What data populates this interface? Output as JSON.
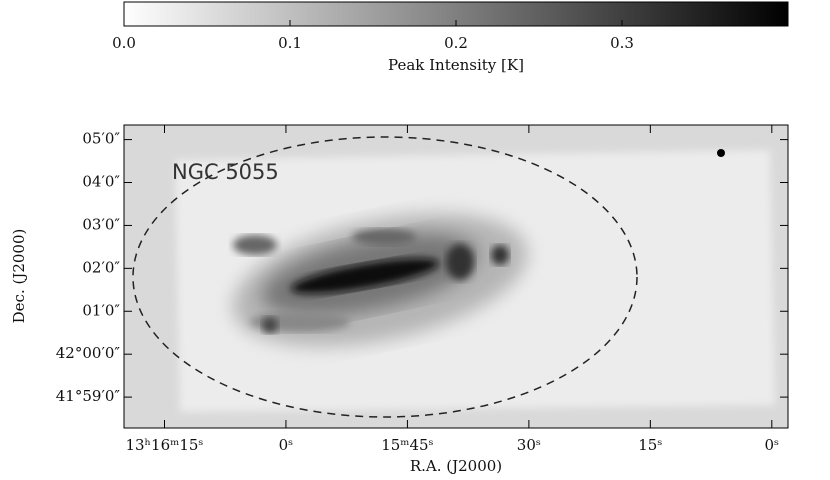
{
  "chart_data": {
    "type": "image",
    "colorbar": {
      "label": "Peak Intensity [K]",
      "lim": [
        0,
        0.4
      ],
      "ticks": [
        {
          "value": 0,
          "label": "0.0"
        },
        0.1,
        0.2,
        0.3
      ]
    },
    "annotation": "NGC 5055",
    "xlabel": "R.A. (J2000)",
    "ylabel": "Dec. (J2000)",
    "xlim": [
      80,
      -2
    ],
    "xticks": [
      {
        "value": 75,
        "label": "13ʰ16ᵐ15ˢ"
      },
      {
        "value": 60,
        "label": "0ˢ"
      },
      {
        "value": 45,
        "label": "15ᵐ45ˢ"
      },
      {
        "value": 30,
        "label": "30ˢ"
      },
      {
        "value": 15,
        "label": "15ˢ"
      },
      {
        "value": 0,
        "label": "0ˢ"
      }
    ],
    "ylim": [
      -1.72,
      5.34
    ],
    "yticks": [
      {
        "value": 5,
        "label": "05′0″"
      },
      {
        "value": 4,
        "label": "04′0″"
      },
      {
        "value": 3,
        "label": "03′0″"
      },
      {
        "value": 2,
        "label": "02′0″"
      },
      {
        "value": 1,
        "label": "01′0″"
      },
      {
        "value": 0,
        "label": "42°00′0″"
      },
      {
        "value": -1,
        "label": "41°59′0″"
      }
    ]
  }
}
